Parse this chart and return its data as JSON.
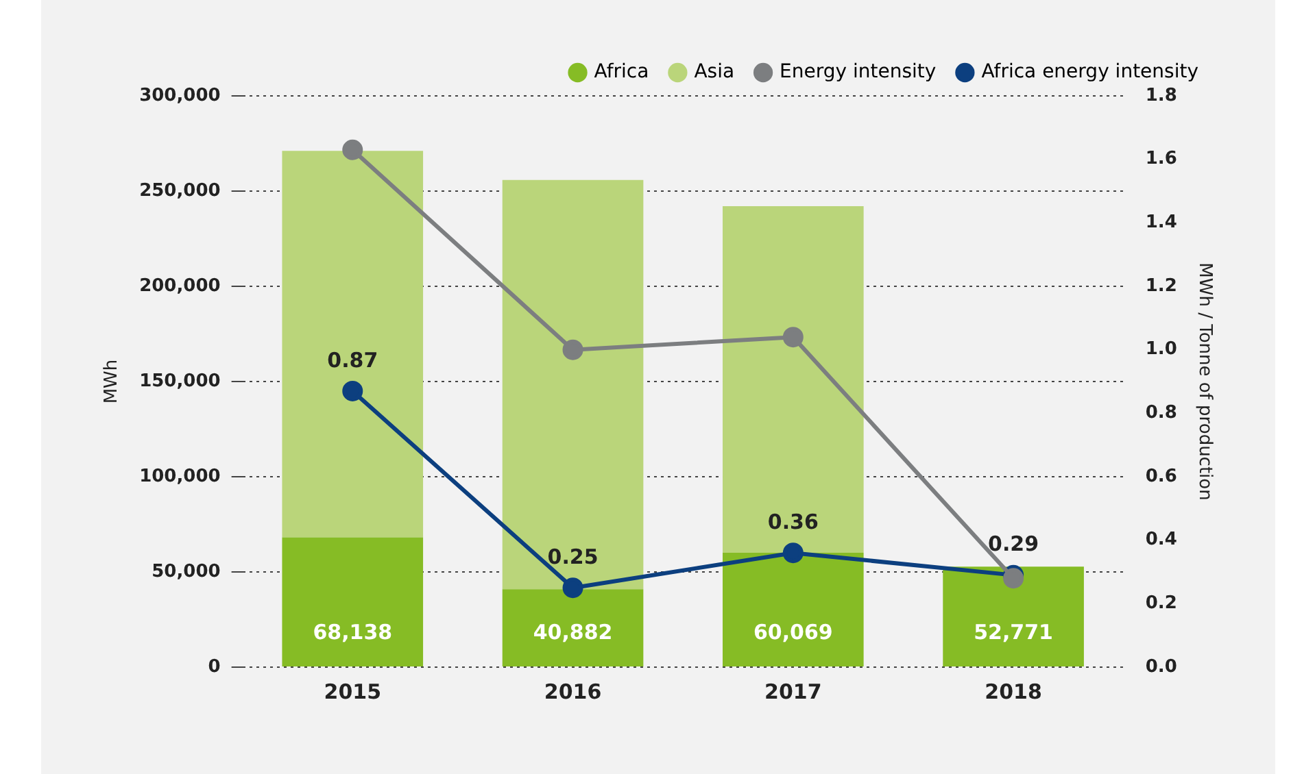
{
  "chart_data": {
    "type": "bar",
    "stacked": true,
    "categories": [
      "2015",
      "2016",
      "2017",
      "2018"
    ],
    "series": [
      {
        "name": "Africa",
        "color": "#86bc25",
        "values": [
          68138,
          40882,
          60069,
          52771
        ],
        "value_labels": [
          "68,138",
          "40,882",
          "60,069",
          "52,771"
        ]
      },
      {
        "name": "Asia",
        "color": "#bad57a",
        "values": [
          203000,
          215000,
          182000,
          0
        ]
      },
      {
        "name": "Energy intensity",
        "type": "line",
        "axis": "y2",
        "color": "#7c7e80",
        "values": [
          1.63,
          1.0,
          1.04,
          0.28
        ]
      },
      {
        "name": "Africa energy intensity",
        "type": "line",
        "axis": "y2",
        "color": "#0c3f7f",
        "values": [
          0.87,
          0.25,
          0.36,
          0.29
        ],
        "value_labels": [
          "0.87",
          "0.25",
          "0.36",
          "0.29"
        ]
      }
    ],
    "ylabel": "MWh",
    "y2label": "MWh / Tonne of production",
    "ylim": [
      0,
      300000
    ],
    "yticks": [
      {
        "value": 0,
        "label": "0"
      },
      {
        "value": 50000,
        "label": "50,000"
      },
      {
        "value": 100000,
        "label": "100,000"
      },
      {
        "value": 150000,
        "label": "150,000"
      },
      {
        "value": 200000,
        "label": "200,000"
      },
      {
        "value": 250000,
        "label": "250,000"
      },
      {
        "value": 300000,
        "label": "300,000"
      }
    ],
    "y2lim": [
      0,
      1.8
    ],
    "y2ticks": [
      {
        "value": 0,
        "label": "0.0"
      },
      {
        "value": 0.2,
        "label": "0.2"
      },
      {
        "value": 0.4,
        "label": "0.4"
      },
      {
        "value": 0.6,
        "label": "0.6"
      },
      {
        "value": 0.8,
        "label": "0.8"
      },
      {
        "value": 1.0,
        "label": "1.0"
      },
      {
        "value": 1.2,
        "label": "1.2"
      },
      {
        "value": 1.4,
        "label": "1.4"
      },
      {
        "value": 1.6,
        "label": "1.6"
      },
      {
        "value": 1.8,
        "label": "1.8"
      }
    ],
    "grid": "y",
    "legend": "top right",
    "marker": "circle",
    "line_style": "solid"
  }
}
